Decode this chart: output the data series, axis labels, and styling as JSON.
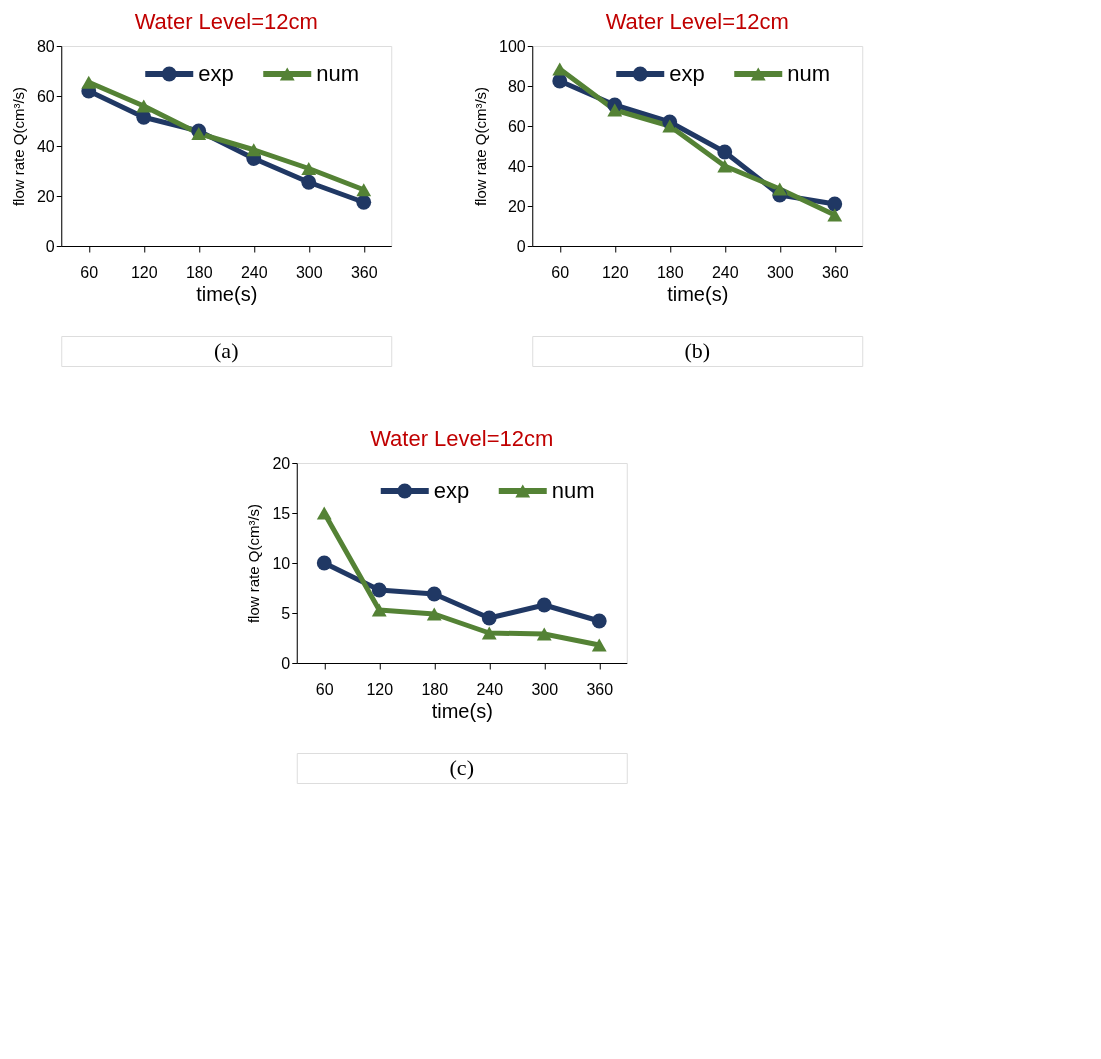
{
  "chart_data": [
    {
      "type": "line",
      "title": "Water Level=12cm",
      "xlabel": "time(s)",
      "ylabel": "flow rate Q(cm³/s)",
      "categories": [
        "60",
        "120",
        "180",
        "240",
        "300",
        "360"
      ],
      "ylim": [
        0,
        80
      ],
      "yticks": [
        0,
        20,
        40,
        60,
        80
      ],
      "grid": false,
      "legend": "top right",
      "annotations": [
        "(a)"
      ],
      "series": [
        {
          "name": "exp",
          "color": "#203864",
          "marker": "circle",
          "values": [
            62,
            51.5,
            46,
            35,
            25.5,
            17.5
          ]
        },
        {
          "name": "num",
          "color": "#548235",
          "marker": "triangle",
          "values": [
            65.5,
            56,
            45,
            38.5,
            31,
            22.5
          ]
        }
      ]
    },
    {
      "type": "line",
      "title": "Water Level=12cm",
      "xlabel": "time(s)",
      "ylabel": "flow rate Q(cm³/s)",
      "categories": [
        "60",
        "120",
        "180",
        "240",
        "300",
        "360"
      ],
      "ylim": [
        0,
        100
      ],
      "yticks": [
        0,
        20,
        40,
        60,
        80,
        100
      ],
      "grid": false,
      "legend": "top right",
      "annotations": [
        "(b)"
      ],
      "series": [
        {
          "name": "exp",
          "color": "#203864",
          "marker": "circle",
          "values": [
            82.5,
            70.5,
            62,
            47,
            25.5,
            21
          ]
        },
        {
          "name": "num",
          "color": "#548235",
          "marker": "triangle",
          "values": [
            88.5,
            68,
            60,
            40,
            28.5,
            15.5
          ]
        }
      ]
    },
    {
      "type": "line",
      "title": "Water Level=12cm",
      "xlabel": "time(s)",
      "ylabel": "flow rate Q(cm³/s)",
      "categories": [
        "60",
        "120",
        "180",
        "240",
        "300",
        "360"
      ],
      "ylim": [
        0,
        20
      ],
      "yticks": [
        0,
        5,
        10,
        15,
        20
      ],
      "grid": false,
      "legend": "top right",
      "annotations": [
        "(c)"
      ],
      "series": [
        {
          "name": "exp",
          "color": "#203864",
          "marker": "circle",
          "values": [
            10,
            7.3,
            6.9,
            4.5,
            5.8,
            4.2
          ]
        },
        {
          "name": "num",
          "color": "#548235",
          "marker": "triangle",
          "values": [
            15,
            5.3,
            4.9,
            3,
            2.9,
            1.8
          ]
        }
      ]
    }
  ]
}
